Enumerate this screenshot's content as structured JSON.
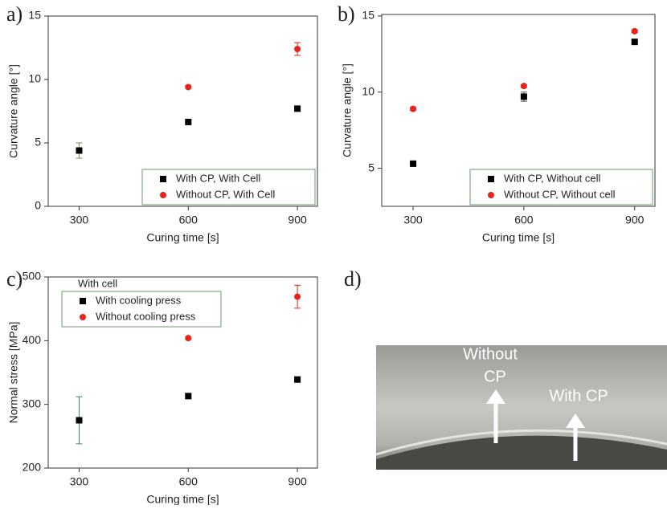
{
  "chart_data": [
    {
      "type": "scatter",
      "panel_label": "a)",
      "x_label": "Curing time [s]",
      "y_label": "Curvature angle [°]",
      "xlim": [
        215,
        955
      ],
      "xticks": [
        300,
        600,
        900
      ],
      "ylim": [
        0,
        15
      ],
      "yticks": [
        0,
        5,
        10,
        15
      ],
      "legend": "lower right",
      "series": [
        {
          "name": "With CP, With Cell",
          "color": "#000000",
          "marker": "square",
          "error_color": "#8a8a5a",
          "x": [
            300,
            600,
            900
          ],
          "values": [
            4.4,
            6.65,
            7.7
          ],
          "errors": [
            0.6,
            0.1,
            0.1
          ]
        },
        {
          "name": "Without CP, With Cell",
          "color": "#e8231c",
          "marker": "circle",
          "error_color": "#e8231c",
          "x": [
            300,
            600,
            900
          ],
          "values": [
            null,
            9.4,
            12.4
          ],
          "errors": [
            null,
            0.1,
            0.5
          ]
        }
      ]
    },
    {
      "type": "scatter",
      "panel_label": "b)",
      "x_label": "Curing time [s]",
      "y_label": "Curvature angle [°]",
      "xlim": [
        215,
        955
      ],
      "xticks": [
        300,
        600,
        900
      ],
      "ylim": [
        2.5,
        15.1
      ],
      "yticks": [
        5,
        10,
        15
      ],
      "legend": "lower right",
      "series": [
        {
          "name": "With CP, Without cell",
          "color": "#000000",
          "marker": "square",
          "error_color": "#555555",
          "x": [
            300,
            600,
            900
          ],
          "values": [
            5.3,
            9.7,
            13.3
          ],
          "errors": [
            0.1,
            0.3,
            0.1
          ]
        },
        {
          "name": "Without CP, Without cell",
          "color": "#e8231c",
          "marker": "circle",
          "error_color": "#e8231c",
          "x": [
            300,
            600,
            900
          ],
          "values": [
            8.9,
            10.4,
            14.0
          ],
          "errors": [
            0.1,
            0.1,
            0.1
          ]
        }
      ]
    },
    {
      "type": "scatter",
      "panel_label": "c)",
      "x_label": "Curing time [s]",
      "y_label": "Normal stress [MPa]",
      "xlim": [
        215,
        955
      ],
      "xticks": [
        300,
        600,
        900
      ],
      "ylim": [
        200,
        500
      ],
      "yticks": [
        200,
        300,
        400,
        500
      ],
      "legend": "upper left",
      "legend_title": "With cell",
      "series": [
        {
          "name": "With cooling press",
          "color": "#000000",
          "marker": "square",
          "error_color": "#4a7a7a",
          "x": [
            300,
            600,
            900
          ],
          "values": [
            275,
            313,
            339
          ],
          "errors": [
            37,
            4,
            3
          ]
        },
        {
          "name": "Without cooling press",
          "color": "#e8231c",
          "marker": "circle",
          "error_color": "#e8231c",
          "x": [
            300,
            600,
            900
          ],
          "values": [
            null,
            404,
            469
          ],
          "errors": [
            null,
            2,
            18
          ]
        }
      ]
    }
  ],
  "photo": {
    "panel_label": "d)",
    "annotations": [
      "Without",
      "CP",
      "With CP"
    ]
  }
}
